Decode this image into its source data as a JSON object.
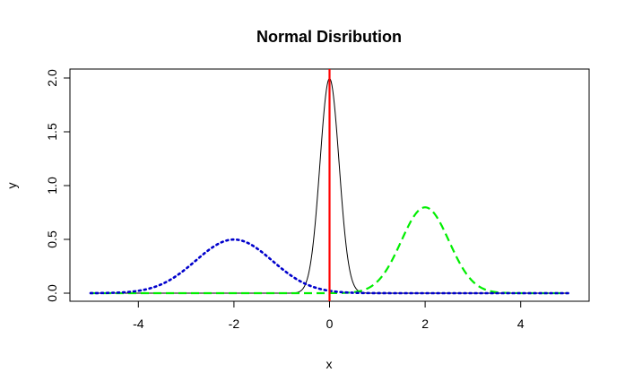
{
  "chart_data": {
    "type": "line",
    "title": "Normal Disribution",
    "xlabel": "x",
    "ylabel": "y",
    "xlim": [
      -5,
      5
    ],
    "ylim": [
      0,
      2
    ],
    "x_ticks": [
      -4,
      -2,
      0,
      2,
      4
    ],
    "y_ticks": [
      0,
      0.5,
      1,
      1.5,
      2
    ],
    "x_tick_labels": [
      "-4",
      "-2",
      "0",
      "2",
      "4"
    ],
    "y_tick_labels": [
      "0.0",
      "0.5",
      "1.0",
      "1.5",
      "2.0"
    ],
    "grid": false,
    "series": [
      {
        "kind": "normal-density",
        "mean": 0,
        "sd": 0.2,
        "color": "#000000",
        "style": "solid",
        "x": [
          -5,
          -1,
          -0.8,
          -0.6,
          -0.5,
          -0.4,
          -0.3,
          -0.2,
          -0.1,
          0,
          0.1,
          0.2,
          0.3,
          0.4,
          0.5,
          0.6,
          0.8,
          1,
          5
        ],
        "y": [
          0,
          0.0003,
          0.0027,
          0.022,
          0.0876,
          0.27,
          0.6476,
          1.2099,
          1.7603,
          1.9947,
          1.7603,
          1.2099,
          0.6476,
          0.27,
          0.0876,
          0.022,
          0.0027,
          0.0003,
          0
        ]
      },
      {
        "kind": "normal-density",
        "mean": 2,
        "sd": 0.5,
        "color": "#00ee00",
        "style": "dashed",
        "x": [
          -5,
          0,
          0.5,
          1,
          1.25,
          1.5,
          1.75,
          2,
          2.25,
          2.5,
          2.75,
          3,
          3.5,
          4,
          5
        ],
        "y": [
          0,
          0.0003,
          0.0089,
          0.108,
          0.259,
          0.4839,
          0.7041,
          0.7979,
          0.7041,
          0.4839,
          0.259,
          0.108,
          0.0089,
          0.0003,
          0
        ]
      },
      {
        "kind": "normal-density",
        "mean": -2,
        "sd": 0.8,
        "color": "#0000cc",
        "style": "dotted",
        "x": [
          -5,
          -4.5,
          -4,
          -3.5,
          -3,
          -2.5,
          -2,
          -1.5,
          -1,
          -0.5,
          0,
          0.5,
          1,
          5
        ],
        "y": [
          0.0004,
          0.0038,
          0.022,
          0.0864,
          0.2283,
          0.4067,
          0.4987,
          0.4067,
          0.2283,
          0.0864,
          0.022,
          0.0038,
          0.0004,
          0
        ]
      }
    ],
    "vline": {
      "x": 0,
      "color": "#ff0000"
    }
  }
}
